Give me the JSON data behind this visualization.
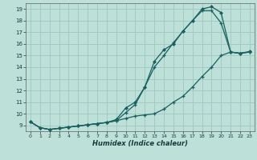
{
  "xlabel": "Humidex (Indice chaleur)",
  "bg_color": "#bde0d8",
  "grid_color": "#9fc8c0",
  "line_color": "#1a6060",
  "xlim": [
    -0.5,
    23.5
  ],
  "ylim": [
    8.5,
    19.5
  ],
  "xticks": [
    0,
    1,
    2,
    3,
    4,
    5,
    6,
    7,
    8,
    9,
    10,
    11,
    12,
    13,
    14,
    15,
    16,
    17,
    18,
    19,
    20,
    21,
    22,
    23
  ],
  "yticks": [
    9,
    10,
    11,
    12,
    13,
    14,
    15,
    16,
    17,
    18,
    19
  ],
  "line1_x": [
    0,
    1,
    2,
    3,
    4,
    5,
    6,
    7,
    8,
    9,
    10,
    11,
    12,
    13,
    14,
    15,
    16,
    17,
    18,
    19,
    20,
    21,
    22,
    23
  ],
  "line1_y": [
    9.3,
    8.8,
    8.65,
    8.75,
    8.85,
    8.95,
    9.05,
    9.15,
    9.25,
    9.4,
    10.1,
    10.8,
    12.3,
    14.0,
    15.0,
    16.1,
    17.1,
    18.0,
    18.85,
    18.85,
    17.8,
    15.3,
    15.2,
    15.3
  ],
  "line2_x": [
    0,
    1,
    2,
    3,
    4,
    5,
    6,
    7,
    8,
    9,
    10,
    11,
    12,
    13,
    14,
    15,
    16,
    17,
    18,
    19,
    20,
    21,
    22,
    23
  ],
  "line2_y": [
    9.3,
    8.8,
    8.65,
    8.75,
    8.85,
    8.95,
    9.05,
    9.15,
    9.25,
    9.5,
    10.5,
    11.0,
    12.3,
    14.5,
    15.5,
    16.0,
    17.1,
    18.0,
    19.0,
    19.2,
    18.7,
    15.3,
    15.2,
    15.35
  ],
  "line3_x": [
    0,
    1,
    2,
    3,
    4,
    5,
    6,
    7,
    8,
    9,
    10,
    11,
    12,
    13,
    14,
    15,
    16,
    17,
    18,
    19,
    20,
    21,
    22,
    23
  ],
  "line3_y": [
    9.3,
    8.8,
    8.65,
    8.75,
    8.85,
    8.95,
    9.05,
    9.15,
    9.25,
    9.4,
    9.6,
    9.8,
    9.9,
    10.0,
    10.4,
    11.0,
    11.5,
    12.3,
    13.2,
    14.0,
    15.0,
    15.3,
    15.2,
    15.3
  ]
}
